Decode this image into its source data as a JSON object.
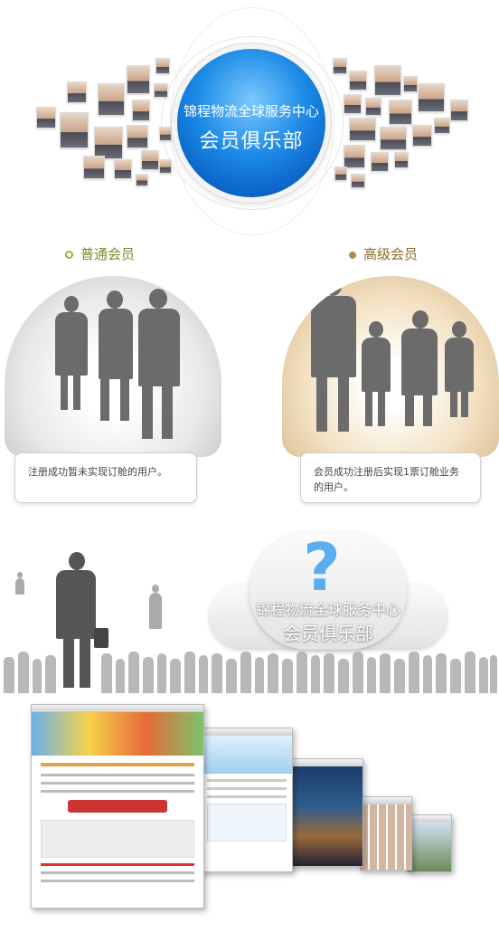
{
  "hero": {
    "line1": "锦程物流全球服务中心",
    "line2": "会员俱乐部"
  },
  "members": {
    "basic": {
      "title": "普通会员",
      "desc": "注册成功暂未实现订舱的用户。",
      "dot_color": "#8fb540"
    },
    "premium": {
      "title": "高级会员",
      "desc": "会员成功注册后实现1票订舱业务的用户。",
      "dot_color": "#b5894a"
    }
  },
  "cloud": {
    "icon": "question-mark-icon",
    "line1": "锦程物流全球服务中心",
    "line2": "会员俱乐部"
  },
  "icon_names": [
    "question-mark-icon"
  ]
}
